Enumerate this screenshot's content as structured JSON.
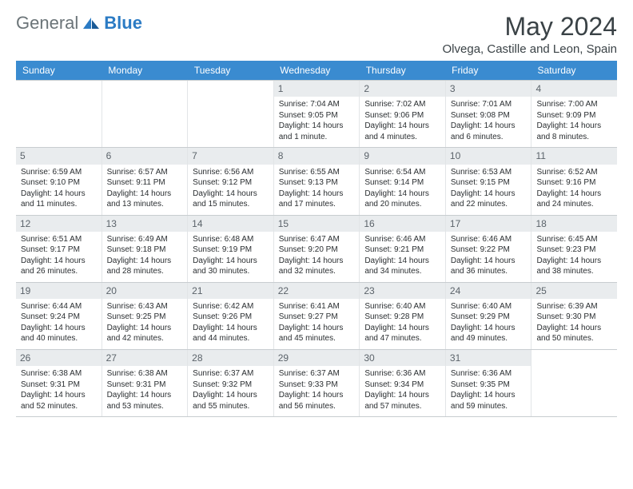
{
  "brand": {
    "text1": "General",
    "text2": "Blue"
  },
  "title": "May 2024",
  "location": "Olvega, Castille and Leon, Spain",
  "colors": {
    "header_bg": "#3a8bd0",
    "header_text": "#ffffff",
    "daynum_bg": "#e9ecee",
    "daynum_text": "#5b636a",
    "border": "#c8cdd0",
    "cell_border": "#e2e5e7",
    "body_text": "#2a2e31",
    "title_text": "#3a4246",
    "brand_gray": "#6b7478",
    "brand_blue": "#2b7bc4",
    "background": "#ffffff"
  },
  "weekdays": [
    "Sunday",
    "Monday",
    "Tuesday",
    "Wednesday",
    "Thursday",
    "Friday",
    "Saturday"
  ],
  "weeks": [
    [
      {
        "n": "",
        "empty": true
      },
      {
        "n": "",
        "empty": true
      },
      {
        "n": "",
        "empty": true
      },
      {
        "n": "1",
        "sunrise": "Sunrise: 7:04 AM",
        "sunset": "Sunset: 9:05 PM",
        "daylight": "Daylight: 14 hours and 1 minute."
      },
      {
        "n": "2",
        "sunrise": "Sunrise: 7:02 AM",
        "sunset": "Sunset: 9:06 PM",
        "daylight": "Daylight: 14 hours and 4 minutes."
      },
      {
        "n": "3",
        "sunrise": "Sunrise: 7:01 AM",
        "sunset": "Sunset: 9:08 PM",
        "daylight": "Daylight: 14 hours and 6 minutes."
      },
      {
        "n": "4",
        "sunrise": "Sunrise: 7:00 AM",
        "sunset": "Sunset: 9:09 PM",
        "daylight": "Daylight: 14 hours and 8 minutes."
      }
    ],
    [
      {
        "n": "5",
        "sunrise": "Sunrise: 6:59 AM",
        "sunset": "Sunset: 9:10 PM",
        "daylight": "Daylight: 14 hours and 11 minutes."
      },
      {
        "n": "6",
        "sunrise": "Sunrise: 6:57 AM",
        "sunset": "Sunset: 9:11 PM",
        "daylight": "Daylight: 14 hours and 13 minutes."
      },
      {
        "n": "7",
        "sunrise": "Sunrise: 6:56 AM",
        "sunset": "Sunset: 9:12 PM",
        "daylight": "Daylight: 14 hours and 15 minutes."
      },
      {
        "n": "8",
        "sunrise": "Sunrise: 6:55 AM",
        "sunset": "Sunset: 9:13 PM",
        "daylight": "Daylight: 14 hours and 17 minutes."
      },
      {
        "n": "9",
        "sunrise": "Sunrise: 6:54 AM",
        "sunset": "Sunset: 9:14 PM",
        "daylight": "Daylight: 14 hours and 20 minutes."
      },
      {
        "n": "10",
        "sunrise": "Sunrise: 6:53 AM",
        "sunset": "Sunset: 9:15 PM",
        "daylight": "Daylight: 14 hours and 22 minutes."
      },
      {
        "n": "11",
        "sunrise": "Sunrise: 6:52 AM",
        "sunset": "Sunset: 9:16 PM",
        "daylight": "Daylight: 14 hours and 24 minutes."
      }
    ],
    [
      {
        "n": "12",
        "sunrise": "Sunrise: 6:51 AM",
        "sunset": "Sunset: 9:17 PM",
        "daylight": "Daylight: 14 hours and 26 minutes."
      },
      {
        "n": "13",
        "sunrise": "Sunrise: 6:49 AM",
        "sunset": "Sunset: 9:18 PM",
        "daylight": "Daylight: 14 hours and 28 minutes."
      },
      {
        "n": "14",
        "sunrise": "Sunrise: 6:48 AM",
        "sunset": "Sunset: 9:19 PM",
        "daylight": "Daylight: 14 hours and 30 minutes."
      },
      {
        "n": "15",
        "sunrise": "Sunrise: 6:47 AM",
        "sunset": "Sunset: 9:20 PM",
        "daylight": "Daylight: 14 hours and 32 minutes."
      },
      {
        "n": "16",
        "sunrise": "Sunrise: 6:46 AM",
        "sunset": "Sunset: 9:21 PM",
        "daylight": "Daylight: 14 hours and 34 minutes."
      },
      {
        "n": "17",
        "sunrise": "Sunrise: 6:46 AM",
        "sunset": "Sunset: 9:22 PM",
        "daylight": "Daylight: 14 hours and 36 minutes."
      },
      {
        "n": "18",
        "sunrise": "Sunrise: 6:45 AM",
        "sunset": "Sunset: 9:23 PM",
        "daylight": "Daylight: 14 hours and 38 minutes."
      }
    ],
    [
      {
        "n": "19",
        "sunrise": "Sunrise: 6:44 AM",
        "sunset": "Sunset: 9:24 PM",
        "daylight": "Daylight: 14 hours and 40 minutes."
      },
      {
        "n": "20",
        "sunrise": "Sunrise: 6:43 AM",
        "sunset": "Sunset: 9:25 PM",
        "daylight": "Daylight: 14 hours and 42 minutes."
      },
      {
        "n": "21",
        "sunrise": "Sunrise: 6:42 AM",
        "sunset": "Sunset: 9:26 PM",
        "daylight": "Daylight: 14 hours and 44 minutes."
      },
      {
        "n": "22",
        "sunrise": "Sunrise: 6:41 AM",
        "sunset": "Sunset: 9:27 PM",
        "daylight": "Daylight: 14 hours and 45 minutes."
      },
      {
        "n": "23",
        "sunrise": "Sunrise: 6:40 AM",
        "sunset": "Sunset: 9:28 PM",
        "daylight": "Daylight: 14 hours and 47 minutes."
      },
      {
        "n": "24",
        "sunrise": "Sunrise: 6:40 AM",
        "sunset": "Sunset: 9:29 PM",
        "daylight": "Daylight: 14 hours and 49 minutes."
      },
      {
        "n": "25",
        "sunrise": "Sunrise: 6:39 AM",
        "sunset": "Sunset: 9:30 PM",
        "daylight": "Daylight: 14 hours and 50 minutes."
      }
    ],
    [
      {
        "n": "26",
        "sunrise": "Sunrise: 6:38 AM",
        "sunset": "Sunset: 9:31 PM",
        "daylight": "Daylight: 14 hours and 52 minutes."
      },
      {
        "n": "27",
        "sunrise": "Sunrise: 6:38 AM",
        "sunset": "Sunset: 9:31 PM",
        "daylight": "Daylight: 14 hours and 53 minutes."
      },
      {
        "n": "28",
        "sunrise": "Sunrise: 6:37 AM",
        "sunset": "Sunset: 9:32 PM",
        "daylight": "Daylight: 14 hours and 55 minutes."
      },
      {
        "n": "29",
        "sunrise": "Sunrise: 6:37 AM",
        "sunset": "Sunset: 9:33 PM",
        "daylight": "Daylight: 14 hours and 56 minutes."
      },
      {
        "n": "30",
        "sunrise": "Sunrise: 6:36 AM",
        "sunset": "Sunset: 9:34 PM",
        "daylight": "Daylight: 14 hours and 57 minutes."
      },
      {
        "n": "31",
        "sunrise": "Sunrise: 6:36 AM",
        "sunset": "Sunset: 9:35 PM",
        "daylight": "Daylight: 14 hours and 59 minutes."
      },
      {
        "n": "",
        "empty": true
      }
    ]
  ]
}
